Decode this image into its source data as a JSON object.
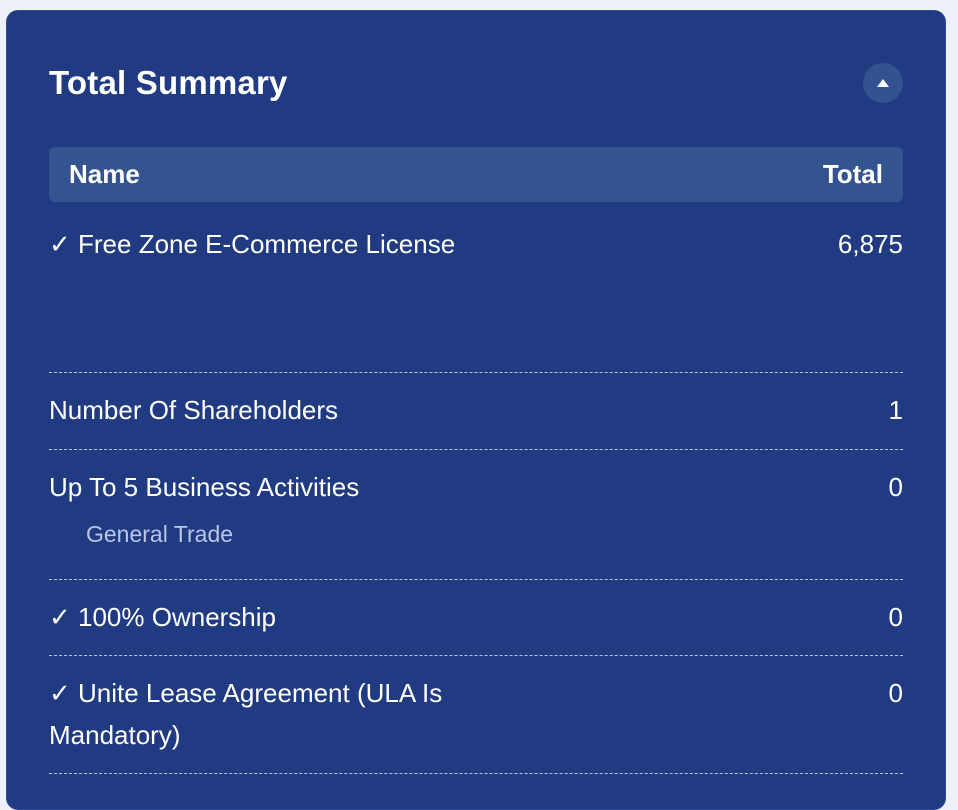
{
  "summary": {
    "title": "Total Summary",
    "columns": {
      "name": "Name",
      "total": "Total"
    },
    "rows": [
      {
        "name": "✓ Free Zone E-Commerce License",
        "total": "6,875"
      },
      {
        "name": "Number Of Shareholders",
        "total": "1"
      },
      {
        "name": "Up To 5 Business Activities",
        "total": "0",
        "sub": "General Trade"
      },
      {
        "name": "✓ 100% Ownership",
        "total": "0"
      },
      {
        "name": "✓ Unite Lease Agreement (ULA Is Mandatory)",
        "total": "0"
      }
    ]
  },
  "icons": {
    "collapse": "chevron-up-icon"
  },
  "colors": {
    "panel": "#213b83",
    "header_row": "#34548f",
    "subtext": "#b9c6e6"
  }
}
